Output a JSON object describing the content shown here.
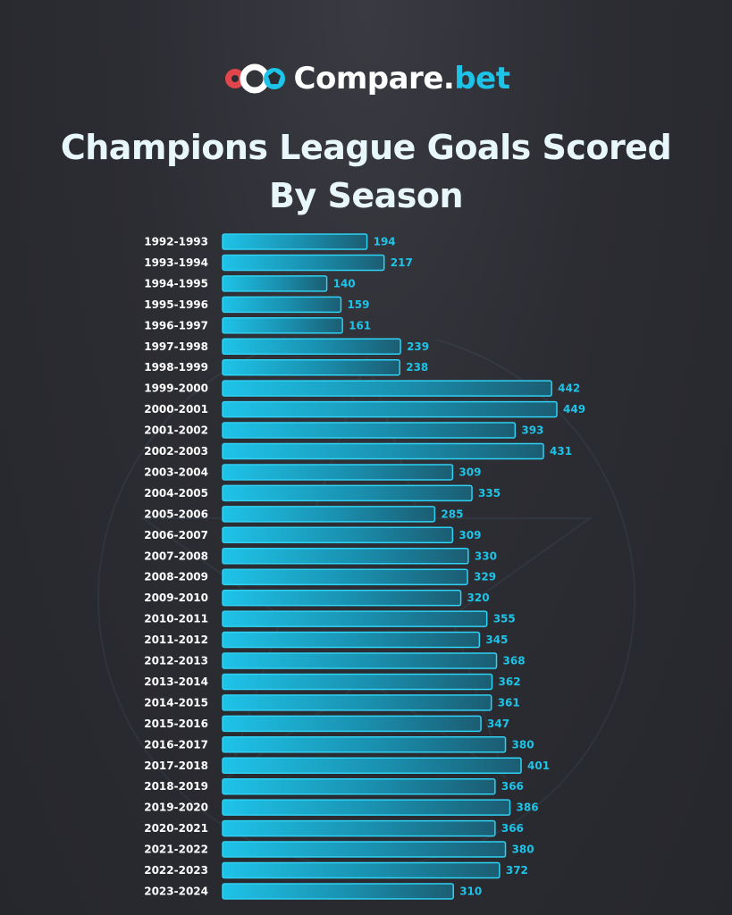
{
  "brand": {
    "name_main": "Compare.",
    "name_accent": "bet",
    "accent_color": "#1ec3e8",
    "logo_red": "#e0474c"
  },
  "title_line1": "Champions League Goals Scored",
  "title_line2": "By Season",
  "chart_data": {
    "type": "bar",
    "orientation": "horizontal",
    "title": "Champions League Goals Scored By Season",
    "xlabel": "",
    "ylabel": "",
    "grid": false,
    "bar_color": "#1ec3e8",
    "categories": [
      "1992-1993",
      "1993-1994",
      "1994-1995",
      "1995-1996",
      "1996-1997",
      "1997-1998",
      "1998-1999",
      "1999-2000",
      "2000-2001",
      "2001-2002",
      "2002-2003",
      "2003-2004",
      "2004-2005",
      "2005-2006",
      "2006-2007",
      "2007-2008",
      "2008-2009",
      "2009-2010",
      "2010-2011",
      "2011-2012",
      "2012-2013",
      "2013-2014",
      "2014-2015",
      "2015-2016",
      "2016-2017",
      "2017-2018",
      "2018-2019",
      "2019-2020",
      "2020-2021",
      "2021-2022",
      "2022-2023",
      "2023-2024"
    ],
    "values": [
      194,
      217,
      140,
      159,
      161,
      239,
      238,
      442,
      449,
      393,
      431,
      309,
      335,
      285,
      309,
      330,
      329,
      320,
      355,
      345,
      368,
      362,
      361,
      347,
      380,
      401,
      366,
      386,
      366,
      380,
      372,
      310
    ],
    "xlim": [
      0,
      449
    ]
  }
}
